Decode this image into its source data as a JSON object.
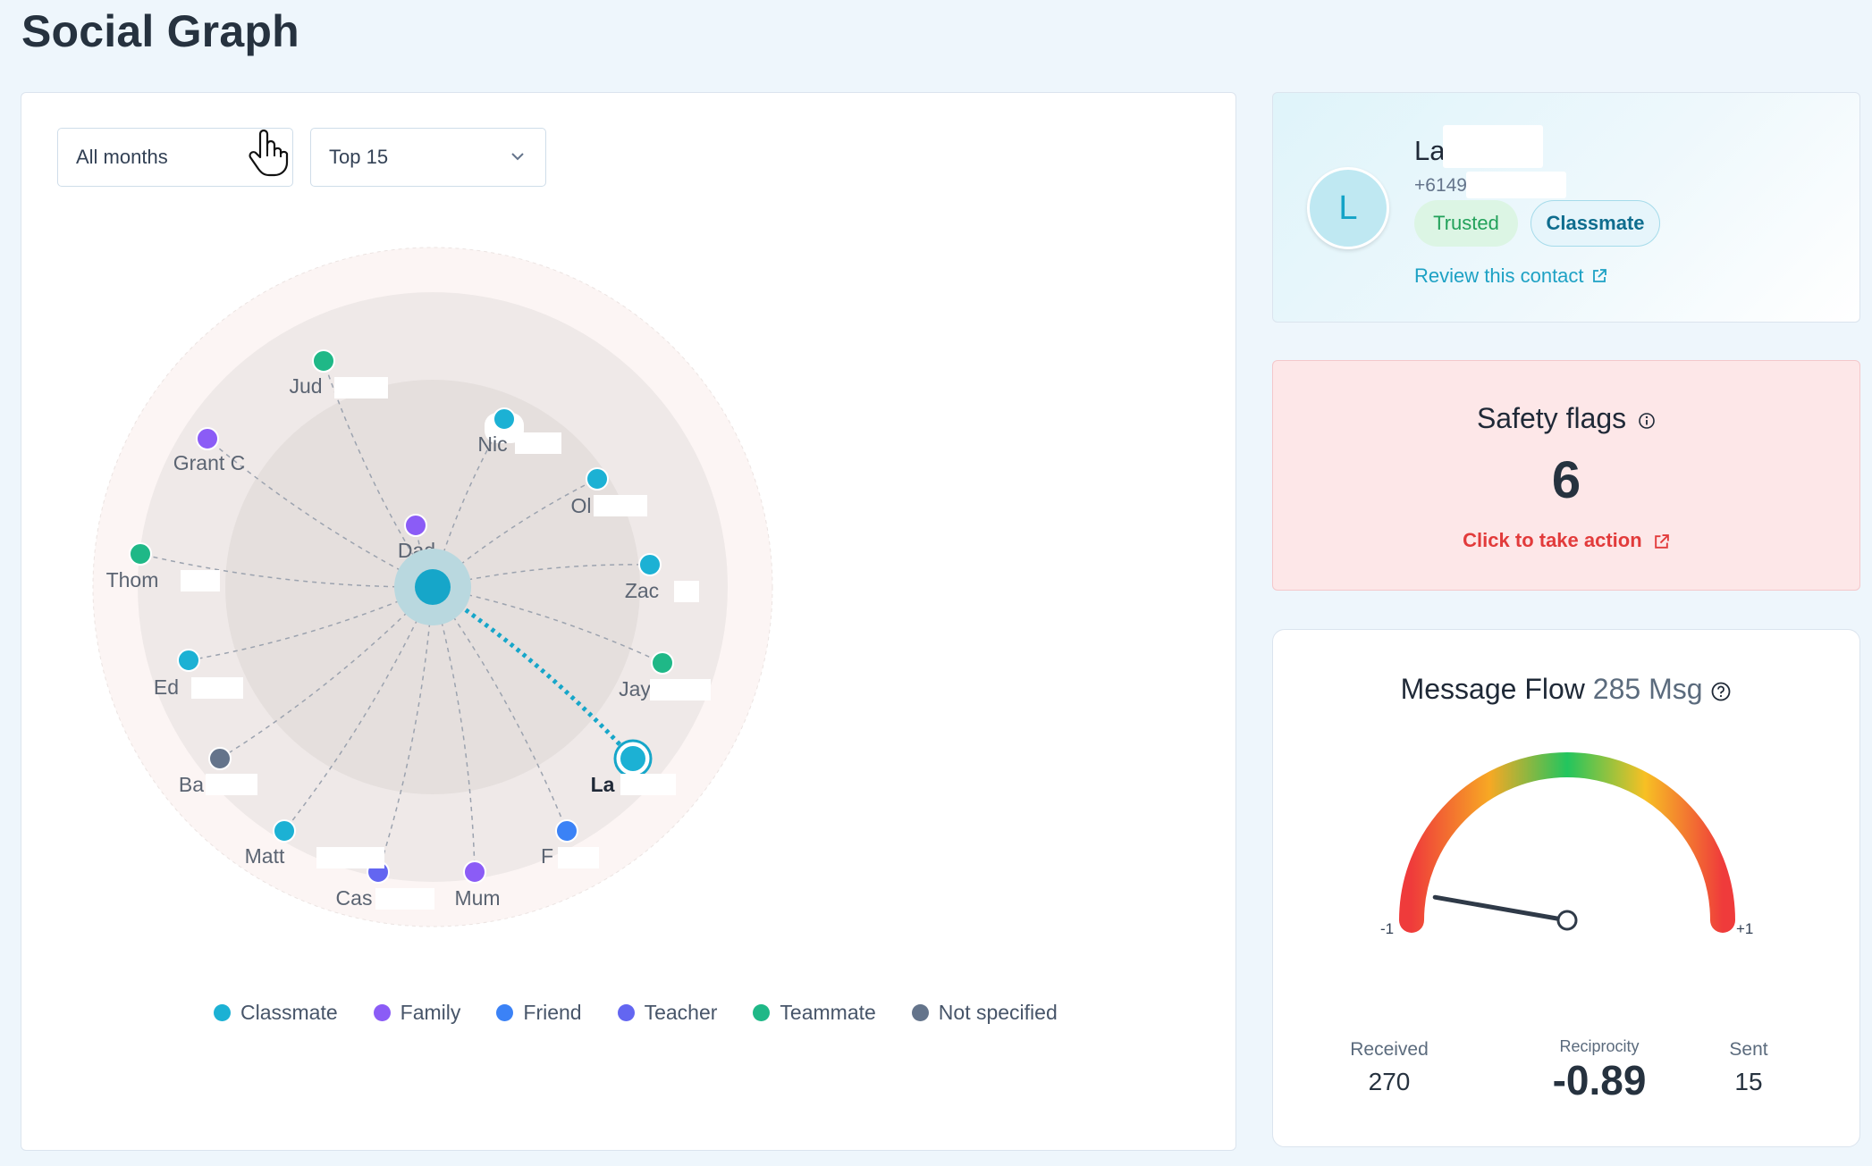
{
  "page": {
    "title": "Social Graph"
  },
  "filters": {
    "months": "All months",
    "top": "Top 15"
  },
  "graph": {
    "center_color": "#16a6c9",
    "nodes": [
      {
        "label": "Jud",
        "type": "Teammate"
      },
      {
        "label": "Nic",
        "type": "Classmate"
      },
      {
        "label": "Ol",
        "type": "Classmate"
      },
      {
        "label": "Zac",
        "type": "Classmate"
      },
      {
        "label": "Jay",
        "type": "Teammate"
      },
      {
        "label": "La",
        "type": "Classmate",
        "selected": true
      },
      {
        "label": "F",
        "type": "Friend"
      },
      {
        "label": "Mum",
        "type": "Family"
      },
      {
        "label": "Cas",
        "type": "Teacher"
      },
      {
        "label": "Matt",
        "type": "Classmate"
      },
      {
        "label": "Ba",
        "type": "Not specified"
      },
      {
        "label": "Ed",
        "type": "Classmate"
      },
      {
        "label": "Thom",
        "type": "Teammate"
      },
      {
        "label": "Grant C",
        "type": "Family"
      },
      {
        "label": "Dad",
        "type": "Family"
      }
    ]
  },
  "legend": [
    {
      "label": "Classmate",
      "color": "#1cb1d4"
    },
    {
      "label": "Family",
      "color": "#8b5cf6"
    },
    {
      "label": "Friend",
      "color": "#3b82f6"
    },
    {
      "label": "Teacher",
      "color": "#6366f1"
    },
    {
      "label": "Teammate",
      "color": "#1fb887"
    },
    {
      "label": "Not specified",
      "color": "#64748b"
    }
  ],
  "contact": {
    "initial": "L",
    "name": "La",
    "phone": "+6149",
    "badges": {
      "trusted": "Trusted",
      "relationship": "Classmate"
    },
    "review_link": "Review this contact"
  },
  "safety": {
    "title": "Safety flags",
    "count": "6",
    "action_link": "Click to take action"
  },
  "message_flow": {
    "title": "Message Flow",
    "total": "285 Msg",
    "gauge_min_label": "-1",
    "gauge_max_label": "+1",
    "reciprocity_value": -0.89,
    "received_label": "Received",
    "received": "270",
    "reciprocity_label": "Reciprocity",
    "reciprocity": "-0.89",
    "sent_label": "Sent",
    "sent": "15"
  }
}
